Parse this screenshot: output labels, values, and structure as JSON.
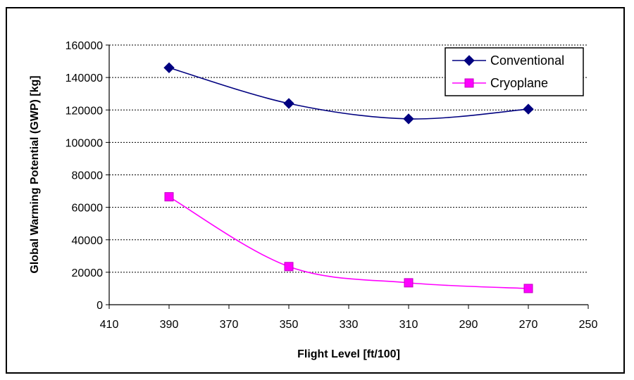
{
  "chart_data": {
    "type": "line",
    "xlabel": "Flight Level [ft/100]",
    "ylabel": "Global Warming Potential (GWP) [kg]",
    "x_reversed": true,
    "xlim": [
      410,
      250
    ],
    "xticks": [
      410,
      390,
      370,
      350,
      330,
      310,
      290,
      270,
      250
    ],
    "ylim": [
      0,
      160000
    ],
    "yticks": [
      0,
      20000,
      40000,
      60000,
      80000,
      100000,
      120000,
      140000,
      160000
    ],
    "grid": "horizontal dashed",
    "legend_position": "top-right",
    "series": [
      {
        "name": "Conventional",
        "color": "#000080",
        "marker": "diamond",
        "smooth": true,
        "x": [
          390,
          350,
          310,
          270
        ],
        "y": [
          146000,
          124000,
          114500,
          120500
        ]
      },
      {
        "name": "Cryoplane",
        "color": "#ff00ff",
        "marker": "square",
        "smooth": true,
        "x": [
          390,
          350,
          310,
          270
        ],
        "y": [
          66500,
          23500,
          13500,
          10000
        ]
      }
    ]
  }
}
